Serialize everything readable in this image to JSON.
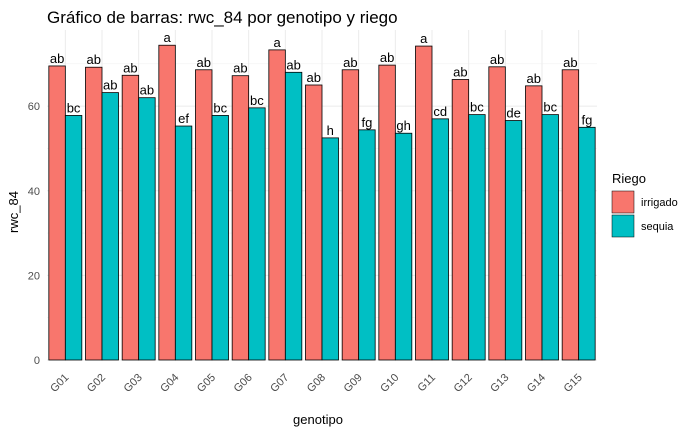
{
  "chart_data": {
    "type": "bar",
    "title": "Gráfico de barras: rwc_84 por genotipo y riego",
    "xlabel": "genotipo",
    "ylabel": "rwc_84",
    "categories": [
      "G01",
      "G02",
      "G03",
      "G04",
      "G05",
      "G06",
      "G07",
      "G08",
      "G09",
      "G10",
      "G11",
      "G12",
      "G13",
      "G14",
      "G15"
    ],
    "ylim": [
      0,
      78
    ],
    "yticks": [
      "0",
      "20",
      "40",
      "60"
    ],
    "grid": true,
    "legend": {
      "title": "Riego",
      "position": "right"
    },
    "series": [
      {
        "name": "irrigado",
        "color": "#F8766D",
        "values": [
          69.5,
          69.2,
          67.3,
          74.4,
          68.6,
          67.2,
          73.3,
          65.0,
          68.6,
          69.7,
          74.2,
          66.3,
          69.3,
          64.8,
          68.6
        ],
        "labels": [
          "ab",
          "ab",
          "ab",
          "a",
          "ab",
          "ab",
          "a",
          "ab",
          "ab",
          "ab",
          "a",
          "ab",
          "ab",
          "ab",
          "ab"
        ]
      },
      {
        "name": "sequia",
        "color": "#00BFC4",
        "values": [
          57.8,
          63.2,
          62.0,
          55.3,
          57.8,
          59.6,
          68.0,
          52.5,
          54.4,
          53.6,
          57.0,
          58.0,
          56.6,
          58.0,
          55.0
        ],
        "labels": [
          "bc",
          "ab",
          "ab",
          "ef",
          "bc",
          "bc",
          "ab",
          "h",
          "fg",
          "gh",
          "cd",
          "bc",
          "de",
          "bc",
          "fg"
        ]
      }
    ]
  }
}
